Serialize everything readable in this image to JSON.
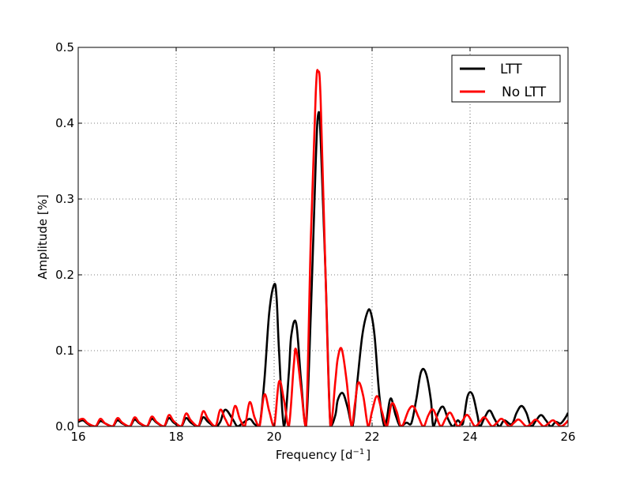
{
  "chart_data": {
    "type": "line",
    "title": "",
    "xlabel": "Frequency [d",
    "xlabel_sup": "−1",
    "xlabel_suffix": "]",
    "ylabel": "Amplitude [%]",
    "xlim": [
      16,
      26
    ],
    "ylim": [
      0,
      0.5
    ],
    "xticks": [
      16,
      18,
      20,
      22,
      24,
      26
    ],
    "xtick_labels": [
      "16",
      "18",
      "20",
      "22",
      "24",
      "26"
    ],
    "yticks": [
      0,
      0.1,
      0.2,
      0.3,
      0.4,
      0.5
    ],
    "ytick_labels": [
      "0.0",
      "0.1",
      "0.2",
      "0.3",
      "0.4",
      "0.5"
    ],
    "grid": true,
    "grid_style": "dotted",
    "legend_position": "top-right",
    "colors": {
      "LTT": "#000000",
      "No LTT": "#ff0000"
    },
    "series": [
      {
        "name": "LTT",
        "color": "#000000",
        "x": [
          16.0,
          16.1,
          16.2,
          16.35,
          16.45,
          16.55,
          16.7,
          16.8,
          16.9,
          17.05,
          17.15,
          17.25,
          17.4,
          17.5,
          17.6,
          17.75,
          17.85,
          17.95,
          18.1,
          18.2,
          18.3,
          18.45,
          18.55,
          18.65,
          18.8,
          18.9,
          19.0,
          19.15,
          19.25,
          19.35,
          19.5,
          19.6,
          19.7,
          19.8,
          19.9,
          20.0,
          20.05,
          20.1,
          20.2,
          20.3,
          20.35,
          20.45,
          20.55,
          20.65,
          20.75,
          20.85,
          20.9,
          20.95,
          21.05,
          21.15,
          21.25,
          21.3,
          21.4,
          21.5,
          21.6,
          21.7,
          21.8,
          21.9,
          21.97,
          22.05,
          22.15,
          22.25,
          22.3,
          22.38,
          22.48,
          22.58,
          22.7,
          22.8,
          22.9,
          23.0,
          23.1,
          23.2,
          23.25,
          23.35,
          23.45,
          23.55,
          23.65,
          23.75,
          23.85,
          23.95,
          24.05,
          24.15,
          24.2,
          24.3,
          24.4,
          24.5,
          24.6,
          24.7,
          24.85,
          24.95,
          25.05,
          25.15,
          25.25,
          25.35,
          25.45,
          25.55,
          25.65,
          25.75,
          25.85,
          25.95,
          26.0
        ],
        "y": [
          0.006,
          0.008,
          0.003,
          0.0,
          0.007,
          0.004,
          0.0,
          0.008,
          0.004,
          0.0,
          0.009,
          0.004,
          0.0,
          0.01,
          0.005,
          0.0,
          0.011,
          0.005,
          0.0,
          0.011,
          0.005,
          0.0,
          0.012,
          0.006,
          0.0,
          0.006,
          0.022,
          0.01,
          0.0,
          0.004,
          0.01,
          0.003,
          0.0,
          0.06,
          0.15,
          0.187,
          0.17,
          0.1,
          0.0,
          0.07,
          0.12,
          0.136,
          0.06,
          0.0,
          0.15,
          0.35,
          0.412,
          0.38,
          0.2,
          0.0,
          0.015,
          0.035,
          0.044,
          0.025,
          0.0,
          0.06,
          0.12,
          0.15,
          0.151,
          0.12,
          0.04,
          0.0,
          0.01,
          0.037,
          0.015,
          0.0,
          0.005,
          0.004,
          0.035,
          0.072,
          0.07,
          0.035,
          0.0,
          0.018,
          0.026,
          0.01,
          0.0,
          0.008,
          0.003,
          0.04,
          0.042,
          0.015,
          0.0,
          0.012,
          0.021,
          0.01,
          0.0,
          0.008,
          0.003,
          0.018,
          0.027,
          0.018,
          0.0,
          0.008,
          0.015,
          0.008,
          0.0,
          0.006,
          0.004,
          0.012,
          0.018
        ]
      },
      {
        "name": "No LTT",
        "color": "#ff0000",
        "x": [
          16.0,
          16.1,
          16.2,
          16.35,
          16.45,
          16.55,
          16.7,
          16.8,
          16.9,
          17.05,
          17.15,
          17.25,
          17.4,
          17.5,
          17.6,
          17.75,
          17.85,
          17.95,
          18.1,
          18.2,
          18.3,
          18.45,
          18.55,
          18.65,
          18.8,
          18.9,
          19.0,
          19.1,
          19.2,
          19.3,
          19.4,
          19.5,
          19.6,
          19.7,
          19.8,
          19.9,
          20.0,
          20.1,
          20.2,
          20.3,
          20.4,
          20.45,
          20.55,
          20.65,
          20.75,
          20.85,
          20.9,
          20.95,
          21.05,
          21.15,
          21.25,
          21.3,
          21.38,
          21.48,
          21.58,
          21.65,
          21.72,
          21.82,
          21.92,
          22.0,
          22.1,
          22.2,
          22.3,
          22.4,
          22.5,
          22.6,
          22.75,
          22.85,
          22.95,
          23.05,
          23.15,
          23.25,
          23.4,
          23.5,
          23.6,
          23.75,
          23.85,
          23.95,
          24.1,
          24.2,
          24.3,
          24.45,
          24.55,
          24.65,
          24.8,
          24.9,
          25.0,
          25.15,
          25.25,
          25.35,
          25.5,
          25.6,
          25.7,
          25.85,
          25.95,
          26.0
        ],
        "y": [
          0.008,
          0.01,
          0.004,
          0.0,
          0.01,
          0.004,
          0.0,
          0.011,
          0.005,
          0.0,
          0.012,
          0.005,
          0.0,
          0.013,
          0.006,
          0.0,
          0.015,
          0.007,
          0.0,
          0.017,
          0.008,
          0.0,
          0.02,
          0.01,
          0.0,
          0.022,
          0.01,
          0.0,
          0.027,
          0.01,
          0.0,
          0.032,
          0.012,
          0.0,
          0.042,
          0.02,
          0.0,
          0.059,
          0.035,
          0.0,
          0.08,
          0.101,
          0.05,
          0.0,
          0.25,
          0.44,
          0.468,
          0.43,
          0.2,
          0.0,
          0.06,
          0.09,
          0.102,
          0.06,
          0.0,
          0.03,
          0.058,
          0.04,
          0.0,
          0.02,
          0.04,
          0.02,
          0.0,
          0.03,
          0.02,
          0.0,
          0.022,
          0.026,
          0.012,
          0.0,
          0.015,
          0.022,
          0.0,
          0.01,
          0.018,
          0.0,
          0.008,
          0.015,
          0.0,
          0.006,
          0.012,
          0.0,
          0.005,
          0.01,
          0.0,
          0.005,
          0.009,
          0.0,
          0.004,
          0.009,
          0.0,
          0.004,
          0.008,
          0.0,
          0.004,
          0.008
        ]
      }
    ]
  }
}
